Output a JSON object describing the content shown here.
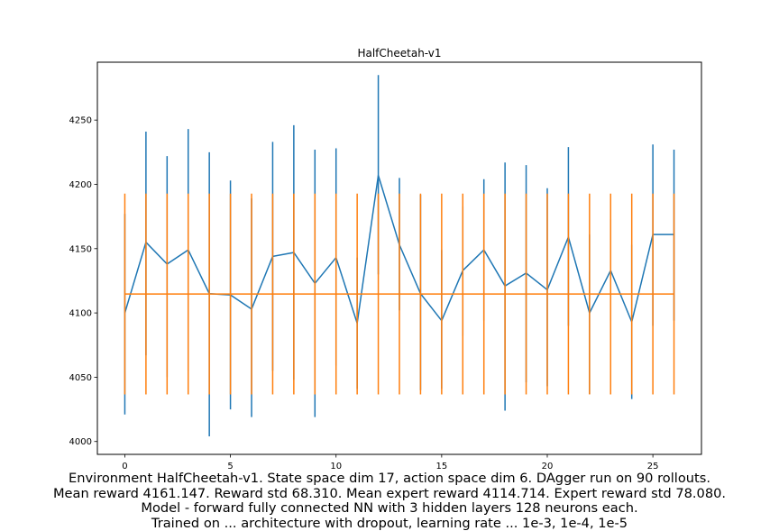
{
  "chart_data": {
    "type": "line",
    "title": "HalfCheetah-v1",
    "xlabel": "",
    "ylabel": "",
    "xlim": [
      -1.3,
      27.3
    ],
    "ylim": [
      3990,
      4295
    ],
    "xticks": [
      0,
      5,
      10,
      15,
      20,
      25
    ],
    "yticks": [
      4000,
      4050,
      4100,
      4150,
      4200,
      4250
    ],
    "grid": false,
    "legend": "none",
    "x": [
      0,
      1,
      2,
      3,
      4,
      5,
      6,
      7,
      8,
      9,
      10,
      11,
      12,
      13,
      14,
      15,
      16,
      17,
      18,
      19,
      20,
      21,
      22,
      23,
      24,
      25,
      26
    ],
    "series": [
      {
        "color": "#1f77b4",
        "values": [
          4100,
          4155,
          4138,
          4149,
          4115,
          4114,
          4103,
          4144,
          4147,
          4123,
          4143,
          4092,
          4207,
          4153,
          4115,
          4094,
          4133,
          4149,
          4121,
          4131,
          4118,
          4159,
          4100,
          4133,
          4093,
          4161,
          4161
        ],
        "err_low": [
          4021,
          4067,
          4050,
          4055,
          4004,
          4025,
          4019,
          4055,
          4048,
          4019,
          4059,
          4041,
          4130,
          4102,
          4040,
          4041,
          4082,
          4094,
          4024,
          4046,
          4043,
          4090,
          4037,
          4094,
          4033,
          4090,
          4094
        ],
        "err_high": [
          4177,
          4241,
          4222,
          4243,
          4225,
          4203,
          4189,
          4233,
          4246,
          4227,
          4228,
          4143,
          4285,
          4205,
          4192,
          4149,
          4183,
          4204,
          4217,
          4215,
          4197,
          4229,
          4161,
          4173,
          4153,
          4231,
          4227
        ]
      },
      {
        "color": "#ff7f0e",
        "values": [
          4114.714,
          4114.714,
          4114.714,
          4114.714,
          4114.714,
          4114.714,
          4114.714,
          4114.714,
          4114.714,
          4114.714,
          4114.714,
          4114.714,
          4114.714,
          4114.714,
          4114.714,
          4114.714,
          4114.714,
          4114.714,
          4114.714,
          4114.714,
          4114.714,
          4114.714,
          4114.714,
          4114.714,
          4114.714,
          4114.714,
          4114.714
        ],
        "err_low": [
          4036.634,
          4036.634,
          4036.634,
          4036.634,
          4036.634,
          4036.634,
          4036.634,
          4036.634,
          4036.634,
          4036.634,
          4036.634,
          4036.634,
          4036.634,
          4036.634,
          4036.634,
          4036.634,
          4036.634,
          4036.634,
          4036.634,
          4036.634,
          4036.634,
          4036.634,
          4036.634,
          4036.634,
          4036.634,
          4036.634,
          4036.634
        ],
        "err_high": [
          4192.794,
          4192.794,
          4192.794,
          4192.794,
          4192.794,
          4192.794,
          4192.794,
          4192.794,
          4192.794,
          4192.794,
          4192.794,
          4192.794,
          4192.794,
          4192.794,
          4192.794,
          4192.794,
          4192.794,
          4192.794,
          4192.794,
          4192.794,
          4192.794,
          4192.794,
          4192.794,
          4192.794,
          4192.794,
          4192.794,
          4192.794
        ]
      }
    ]
  },
  "caption": {
    "line1": "Environment HalfCheetah-v1. State space dim 17, action space dim 6. DAgger run on 90 rollouts.",
    "line2": "Mean reward 4161.147. Reward std 68.310. Mean expert reward 4114.714. Expert reward std 78.080.",
    "line3": "Model - forward fully connected NN with 3 hidden layers 128 neurons each.",
    "line4": "Trained on ... architecture with dropout, learning rate ... 1e-3, 1e-4, 1e-5"
  }
}
